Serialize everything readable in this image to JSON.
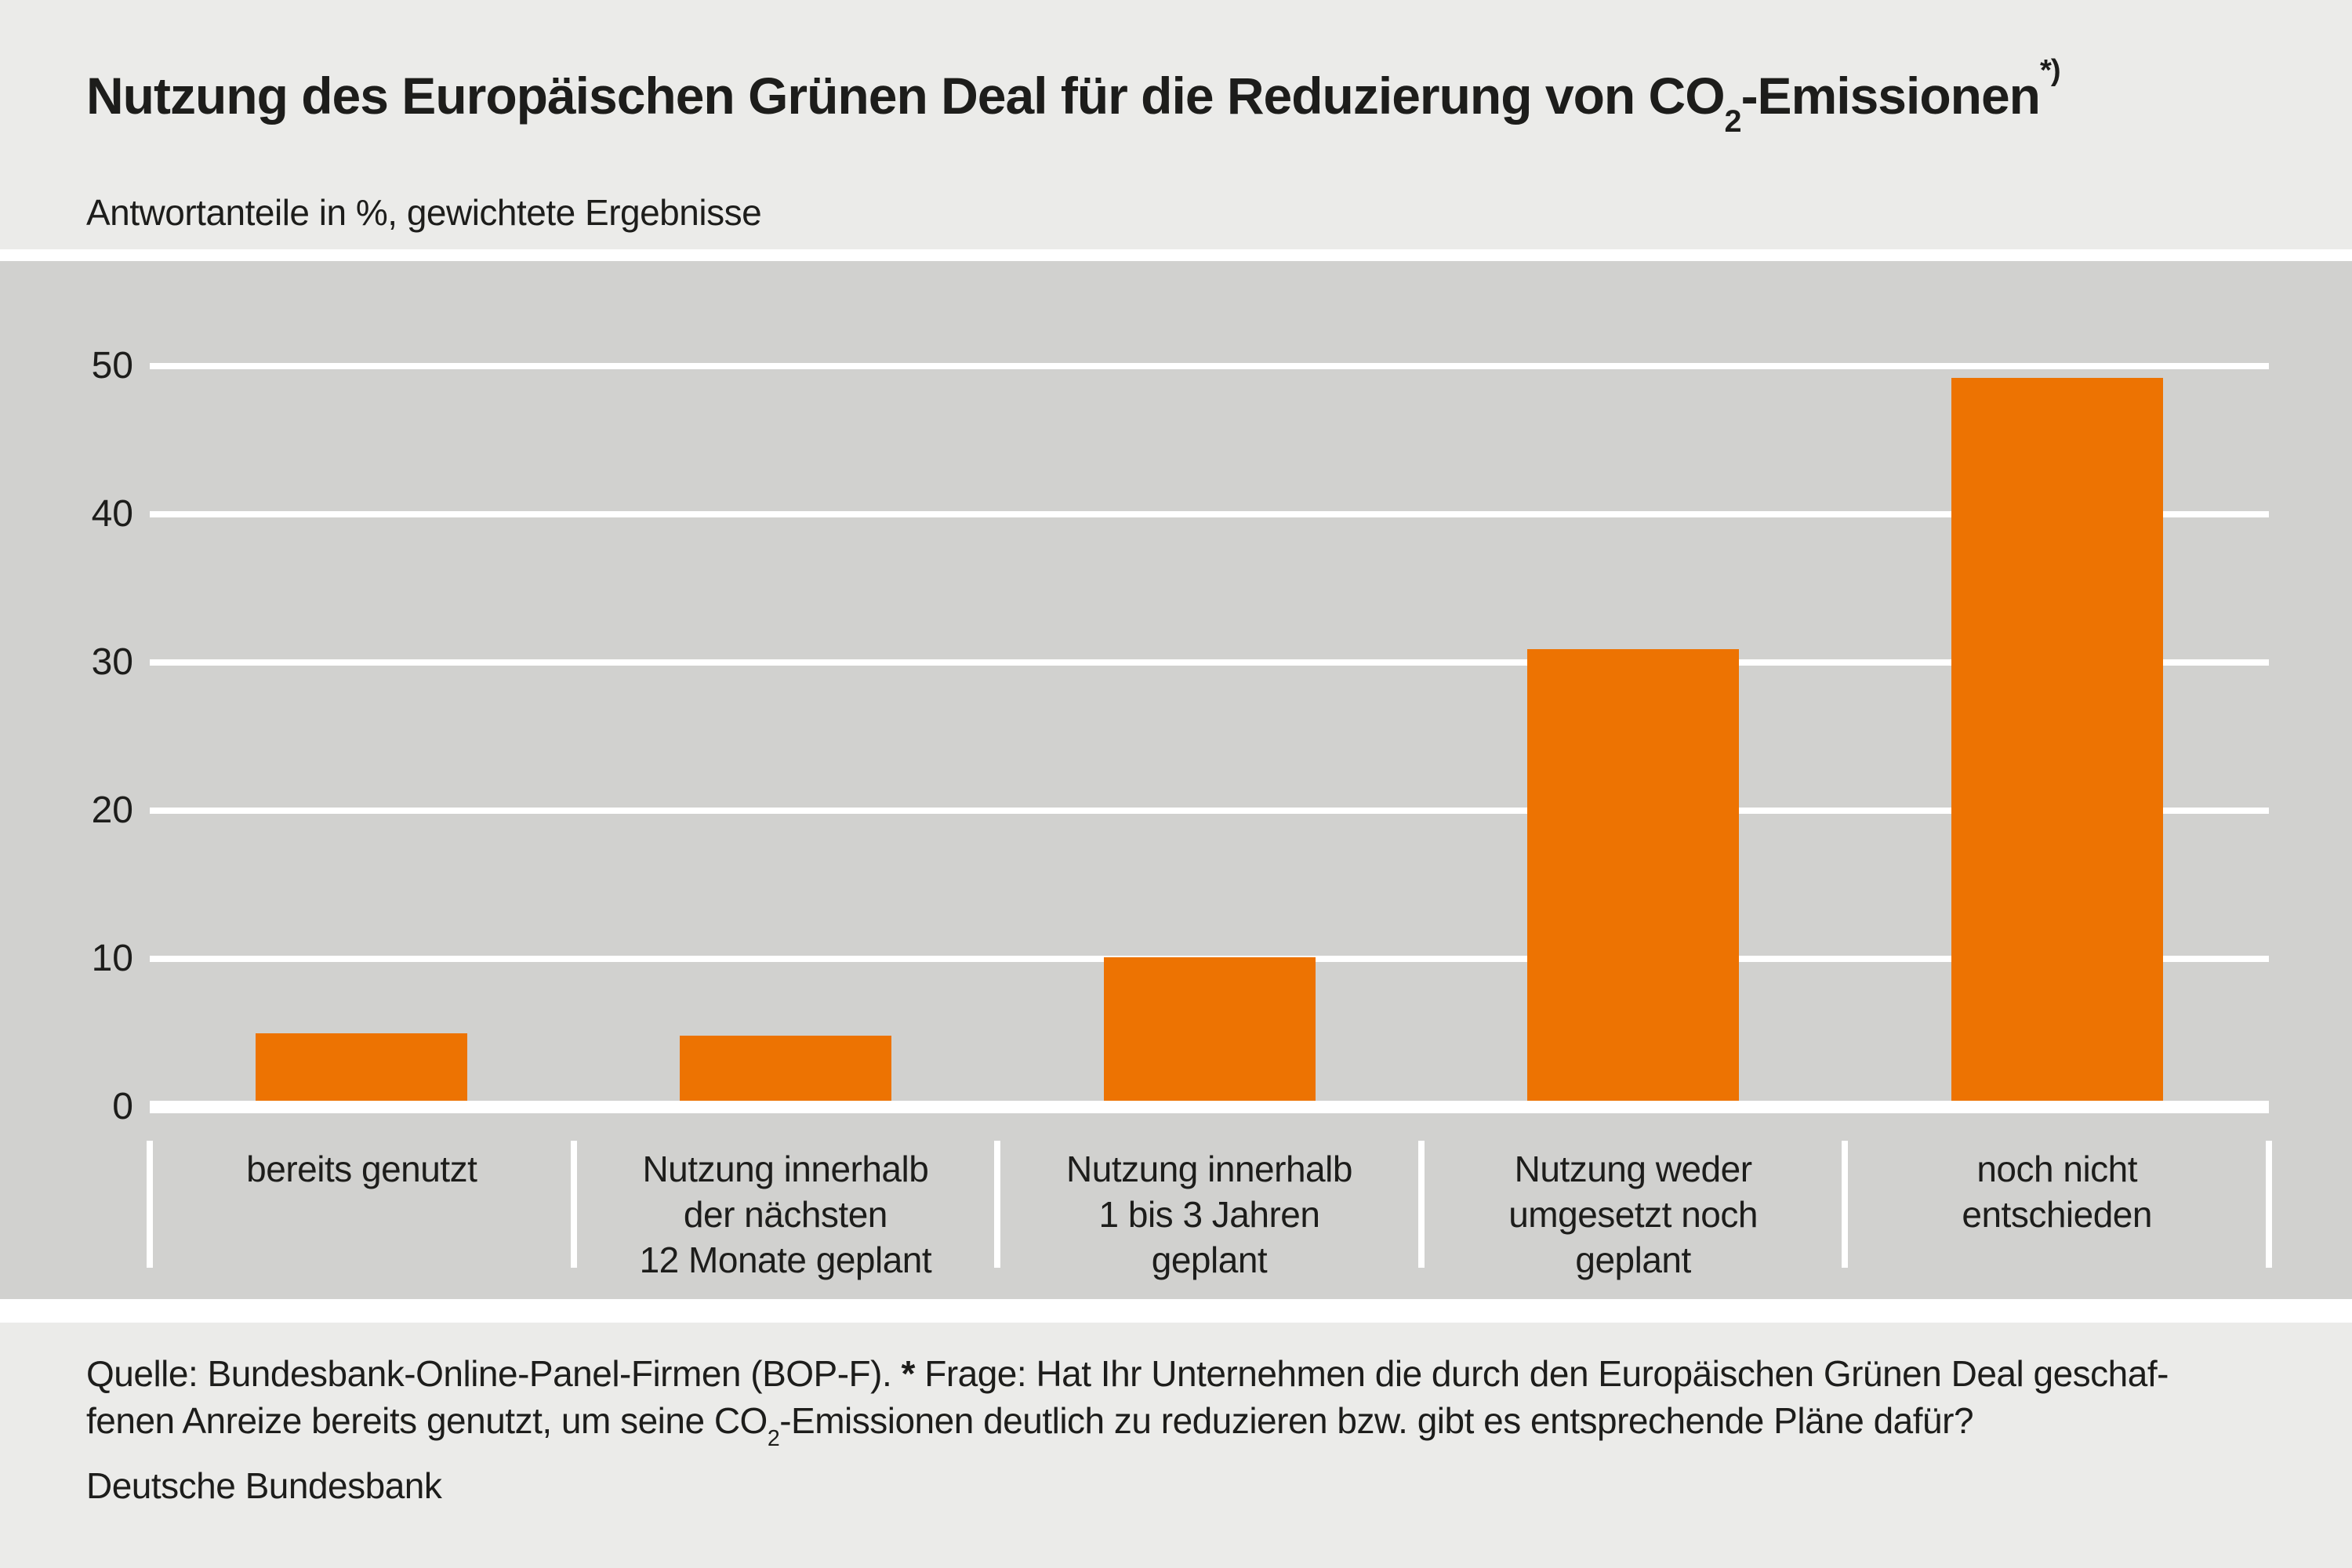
{
  "page": {
    "background": "#ebebe9",
    "plot_background": "#d1d1cf",
    "accent_orange": "#ed7302",
    "text_color": "#1d1d1b"
  },
  "header": {
    "title_part1": "Nutzung des Europäischen Grünen Deal für die Reduzierung von CO",
    "title_subscript": "2",
    "title_part2": "-Emissionen",
    "title_footnote": "*)",
    "subtitle": "Antwortanteile in %, gewichtete Ergebnisse"
  },
  "chart_data": {
    "type": "bar",
    "title": "Nutzung des Europäischen Grünen Deal für die Reduzierung von CO2-Emissionen *)",
    "subtitle": "Antwortanteile in %, gewichtete Ergebnisse",
    "ylabel": "Antwortanteile in %",
    "categories": [
      "bereits genutzt",
      "Nutzung innerhalb der nächsten 12 Monate geplant",
      "Nutzung innerhalb 1 bis 3 Jahren geplant",
      "Nutzung weder umgesetzt noch geplant",
      "noch nicht entschieden"
    ],
    "category_lines": [
      [
        "bereits genutzt"
      ],
      [
        "Nutzung innerhalb",
        "der nächsten",
        "12 Monate geplant"
      ],
      [
        "Nutzung innerhalb",
        "1 bis 3 Jahren",
        "geplant"
      ],
      [
        "Nutzung weder",
        "umgesetzt noch",
        "geplant"
      ],
      [
        "noch nicht",
        "entschieden"
      ]
    ],
    "values": [
      5.0,
      4.8,
      10.1,
      30.9,
      49.2
    ],
    "y_ticks": [
      0,
      10,
      20,
      30,
      40,
      50
    ],
    "ylim": [
      0,
      55.5
    ],
    "bar_color": "#ed7302",
    "grid": true,
    "legend": false
  },
  "footer": {
    "source_line1_pre": "Quelle: Bundesbank-Online-Panel-Firmen (BOP-F). ",
    "source_line1_star": "*",
    "source_line1_post": " Frage: Hat Ihr Unternehmen die durch den Europäischen Grünen Deal geschaf-",
    "source_line2_pre": "fenen Anreize bereits genutzt, um seine CO",
    "source_line2_subscript": "2",
    "source_line2_post": "-Emissionen deutlich zu reduzieren bzw. gibt es entsprechende Pläne dafür?",
    "brand": "Deutsche Bundesbank"
  }
}
